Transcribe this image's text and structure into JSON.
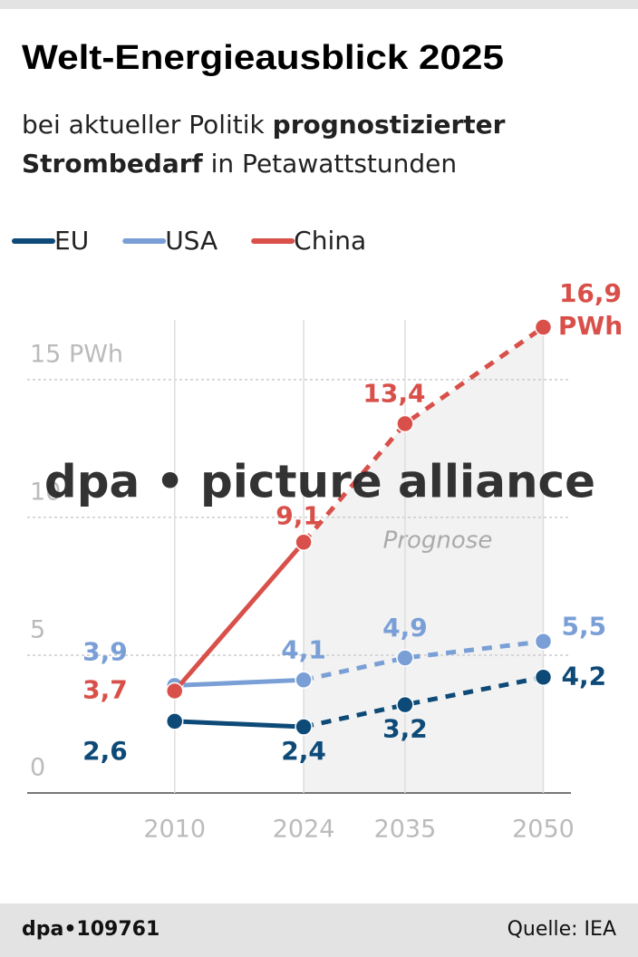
{
  "chart_data": {
    "type": "line",
    "title": "Welt-Energieausblick 2025",
    "subtitle_parts": [
      "bei aktueller Politik ",
      "prognostizierter",
      "Strombedarf",
      " in Petawattstunden"
    ],
    "x": [
      2010,
      2024,
      2035,
      2050
    ],
    "xlim": [
      1994,
      2053
    ],
    "xticks": [
      2010,
      2024,
      2035,
      2050
    ],
    "ylim": [
      0,
      17
    ],
    "yticks": [
      0,
      5,
      10,
      {
        "value": 15,
        "label": "15 PWh"
      }
    ],
    "grid": true,
    "forecast_start": 2024,
    "annotation": "Prognose",
    "watermark": "dpa • picture alliance",
    "series": [
      {
        "name": "EU",
        "color": "#0e4a78",
        "values": [
          2.6,
          2.4,
          3.2,
          4.2
        ],
        "value_labels": [
          "2,6",
          "2,4",
          "3,2",
          "4,2"
        ]
      },
      {
        "name": "USA",
        "color": "#7a9fd6",
        "values": [
          3.9,
          4.1,
          4.9,
          5.5
        ],
        "value_labels": [
          "3,9",
          "4,1",
          "4,9",
          "5,5"
        ]
      },
      {
        "name": "China",
        "color": "#d9504a",
        "values": [
          3.7,
          9.1,
          13.4,
          16.9
        ],
        "value_labels": [
          "3,7",
          "9,1",
          "13,4",
          "16,9 PWh"
        ]
      }
    ],
    "footer_id": "dpa•109761",
    "source": "Quelle: IEA"
  }
}
